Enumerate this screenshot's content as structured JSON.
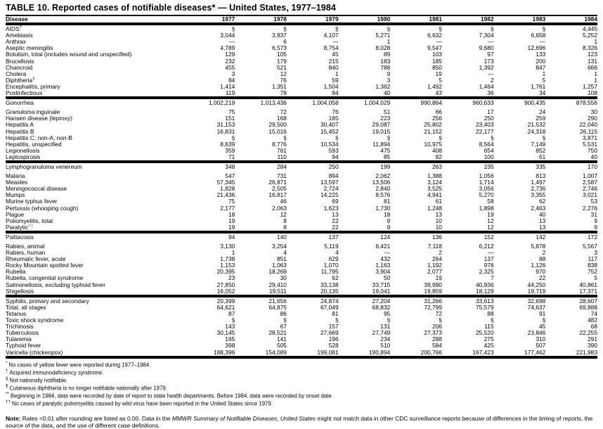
{
  "title": "TABLE 10. Reported cases of notifiable diseases* — United States, 1977–1984",
  "columns": [
    "Disease",
    "1977",
    "1978",
    "1979",
    "1980",
    "1981",
    "1982",
    "1983",
    "1984"
  ],
  "groups": [
    {
      "rows": [
        {
          "name": "AIDS",
          "sup": "†",
          "values": [
            "§",
            "§",
            "§",
            "§",
            "§",
            "§",
            "§",
            "4,445"
          ]
        },
        {
          "name": "Amebiasis",
          "values": [
            "3,044",
            "3,937",
            "4,107",
            "5,271",
            "6,632",
            "7,304",
            "6,658",
            "5,252"
          ]
        },
        {
          "name": "Anthrax",
          "values": [
            "—",
            "6",
            "—",
            "1",
            "—",
            "—",
            "—",
            "1"
          ]
        },
        {
          "name": "Aseptic meningitis",
          "values": [
            "4,789",
            "6,573",
            "8,754",
            "8,028",
            "9,547",
            "9,680",
            "12,696",
            "8,326"
          ]
        },
        {
          "name": "Botulism, total (includes wound and unspecified)",
          "values": [
            "129",
            "105",
            "45",
            "89",
            "103",
            "97",
            "133",
            "123"
          ]
        },
        {
          "name": "Brucellosis",
          "values": [
            "232",
            "179",
            "215",
            "183",
            "185",
            "173",
            "200",
            "131"
          ]
        },
        {
          "name": "Chancroid",
          "values": [
            "455",
            "521",
            "840",
            "788",
            "850",
            "1,392",
            "847",
            "666"
          ]
        },
        {
          "name": "Cholera",
          "values": [
            "3",
            "12",
            "1",
            "9",
            "19",
            "—",
            "1",
            "1"
          ]
        },
        {
          "name": "Diphtheria",
          "sup": "¶",
          "values": [
            "84",
            "76",
            "59",
            "3",
            "5",
            "2",
            "5",
            "1"
          ]
        },
        {
          "name": "Encephalitis, primary",
          "values": [
            "1,414",
            "1,351",
            "1,504",
            "1,362",
            "1,492",
            "1,464",
            "1,761",
            "1,257"
          ]
        },
        {
          "name": "Postinfectious",
          "sup": "**",
          "indent": true,
          "values": [
            "119",
            "78",
            "84",
            "40",
            "43",
            "36",
            "34",
            "108"
          ]
        }
      ]
    },
    {
      "rows": [
        {
          "name": "Gonorrhea",
          "values": [
            "1,002,219",
            "1,013,436",
            "1,004,058",
            "1,004,029",
            "990,864",
            "960,633",
            "900,435",
            "878,556"
          ]
        },
        {
          "name": "Granuloma inguinale",
          "values": [
            "75",
            "72",
            "76",
            "51",
            "66",
            "17",
            "24",
            "30"
          ]
        },
        {
          "name": "Hansen disease (leprosy)",
          "values": [
            "151",
            "168",
            "185",
            "223",
            "256",
            "250",
            "259",
            "290"
          ]
        },
        {
          "name": "Hepatitis A",
          "values": [
            "31,153",
            "29,500",
            "30,407",
            "29,087",
            "25,802",
            "23,403",
            "21,532",
            "22,040"
          ]
        },
        {
          "name": "Hepatitis B",
          "values": [
            "16,831",
            "15,016",
            "15,452",
            "19,015",
            "21,152",
            "22,177",
            "24,318",
            "26,115"
          ]
        },
        {
          "name": "Hepatitis C; non-A, non-B",
          "values": [
            "§",
            "§",
            "§",
            "§",
            "§",
            "§",
            "§",
            "3,871"
          ]
        },
        {
          "name": "Hepatitis, unspecified",
          "values": [
            "8,639",
            "8,776",
            "10,534",
            "11,894",
            "10,975",
            "8,564",
            "7,149",
            "5,531"
          ]
        },
        {
          "name": "Legionellosis",
          "values": [
            "359",
            "761",
            "593",
            "475",
            "408",
            "654",
            "852",
            "750"
          ]
        },
        {
          "name": "Leptospirosis",
          "values": [
            "71",
            "110",
            "94",
            "85",
            "82",
            "100",
            "61",
            "40"
          ]
        }
      ]
    },
    {
      "rows": [
        {
          "name": "Lymphogranuloma venereum",
          "values": [
            "348",
            "284",
            "250",
            "199",
            "263",
            "235",
            "335",
            "170"
          ]
        },
        {
          "name": "Malaria",
          "values": [
            "547",
            "731",
            "894",
            "2,062",
            "1,388",
            "1,056",
            "813",
            "1,007"
          ]
        },
        {
          "name": "Measles",
          "values": [
            "57,345",
            "26,871",
            "13,597",
            "13,506",
            "3,124",
            "1,714",
            "1,497",
            "2,587"
          ]
        },
        {
          "name": "Meningococcal disease",
          "values": [
            "1,828",
            "2,505",
            "2,724",
            "2,840",
            "3,525",
            "3,056",
            "2,736",
            "2,746"
          ]
        },
        {
          "name": "Mumps",
          "values": [
            "21,436",
            "16,817",
            "14,225",
            "8,576",
            "4,941",
            "5,270",
            "3,355",
            "3,021"
          ]
        },
        {
          "name": "Murine typhus fever",
          "values": [
            "75",
            "46",
            "69",
            "81",
            "61",
            "58",
            "62",
            "53"
          ]
        },
        {
          "name": "Pertussis (whooping cough)",
          "values": [
            "2,177",
            "2,063",
            "1,623",
            "1,730",
            "1,248",
            "1,898",
            "2,463",
            "2,276"
          ]
        },
        {
          "name": "Plague",
          "values": [
            "18",
            "12",
            "13",
            "18",
            "13",
            "19",
            "40",
            "31"
          ]
        },
        {
          "name": "Poliomyelitis, total",
          "values": [
            "19",
            "8",
            "22",
            "9",
            "10",
            "12",
            "13",
            "9"
          ]
        },
        {
          "name": "Paralytic",
          "sup": "††",
          "indent": true,
          "values": [
            "19",
            "8",
            "22",
            "9",
            "10",
            "12",
            "13",
            "9"
          ]
        }
      ]
    },
    {
      "rows": [
        {
          "name": "Psittacosis",
          "values": [
            "94",
            "140",
            "137",
            "124",
            "136",
            "152",
            "142",
            "172"
          ]
        },
        {
          "name": "Rabies, animal",
          "values": [
            "3,130",
            "3,254",
            "5,119",
            "6,421",
            "7,118",
            "6,212",
            "5,878",
            "5,567"
          ]
        },
        {
          "name": "Rabies, human",
          "values": [
            "1",
            "4",
            "4",
            "—",
            "2",
            "—",
            "2",
            "3"
          ]
        },
        {
          "name": "Rheumatic fever, acute",
          "values": [
            "1,738",
            "851",
            "629",
            "432",
            "264",
            "137",
            "88",
            "117"
          ]
        },
        {
          "name": "Rocky Mountain spotted fever",
          "values": [
            "1,153",
            "1,063",
            "1,070",
            "1,163",
            "1,192",
            "976",
            "1,126",
            "838"
          ]
        },
        {
          "name": "Rubella",
          "values": [
            "20,395",
            "18,269",
            "11,795",
            "3,904",
            "2,077",
            "2,325",
            "970",
            "752"
          ]
        },
        {
          "name": "Rubella, congenital syndrome",
          "values": [
            "23",
            "30",
            "62",
            "50",
            "19",
            "7",
            "22",
            "5"
          ]
        },
        {
          "name": "Salmonellosis, excluding typhoid fever",
          "values": [
            "27,850",
            "29,410",
            "33,138",
            "33,715",
            "39,990",
            "40,936",
            "44,250",
            "40,861"
          ]
        },
        {
          "name": "Shigellosis",
          "values": [
            "16,052",
            "19,511",
            "20,135",
            "19,041",
            "19,859",
            "18,129",
            "19,719",
            "17,371"
          ]
        }
      ]
    },
    {
      "rows": [
        {
          "name": "Syphilis, primary and secondary",
          "values": [
            "20,399",
            "21,656",
            "24,874",
            "27,204",
            "31,266",
            "33,613",
            "32,698",
            "28,607"
          ]
        },
        {
          "name": "Total, all stages",
          "indent": true,
          "values": [
            "64,621",
            "64,875",
            "67,049",
            "68,832",
            "72,799",
            "75,579",
            "74,637",
            "69,888"
          ]
        },
        {
          "name": "Tetanus",
          "values": [
            "87",
            "86",
            "81",
            "95",
            "72",
            "88",
            "91",
            "74"
          ]
        },
        {
          "name": "Toxic shock syndrome",
          "values": [
            "§",
            "§",
            "§",
            "§",
            "§",
            "§",
            "§",
            "482"
          ]
        },
        {
          "name": "Trichinosis",
          "values": [
            "143",
            "67",
            "157",
            "131",
            "206",
            "115",
            "45",
            "68"
          ]
        },
        {
          "name": "Tuberculosis",
          "values": [
            "30,145",
            "28,521",
            "27,669",
            "27,749",
            "27,373",
            "25,520",
            "23,846",
            "22,255"
          ]
        },
        {
          "name": "Tularemia",
          "values": [
            "165",
            "141",
            "196",
            "234",
            "288",
            "275",
            "310",
            "291"
          ]
        },
        {
          "name": "Typhoid fever",
          "values": [
            "398",
            "505",
            "528",
            "510",
            "584",
            "425",
            "507",
            "390"
          ]
        },
        {
          "name": "Varicella (chickenpox)",
          "values": [
            "188,396",
            "154,089",
            "199,081",
            "190,894",
            "200,766",
            "167,423",
            "177,462",
            "221,983"
          ]
        }
      ]
    }
  ],
  "footnotes": [
    {
      "symbol": "*",
      "text": "No cases of yellow fever were reported during 1977–1984."
    },
    {
      "symbol": "†",
      "text": "Acquired immunodeficiency syndrome."
    },
    {
      "symbol": "§",
      "text": "Not nationally notifiable."
    },
    {
      "symbol": "¶",
      "text": "Cutaneous diphtheria is no longer notifiable nationally after 1979."
    },
    {
      "symbol": "**",
      "text": "Beginning in 1984, data were recorded by date of report to state health departments.  Before 1984, data were recorded by onset date."
    },
    {
      "symbol": "††",
      "text": "No cases of paralytic poliomyelitis caused by wild virus have been reported in the United States since 1979."
    }
  ],
  "note": {
    "label": "Note:",
    "part1": " Rates <0.01 after rounding are listed as 0.00. Data in the ",
    "italic": "MMWR Summary of Notifiable Diseases, United States",
    "part2": " might not match data in other CDC surveillance reports because of differences in the timing of reports, the source of the data, and the use of different case definitions."
  }
}
